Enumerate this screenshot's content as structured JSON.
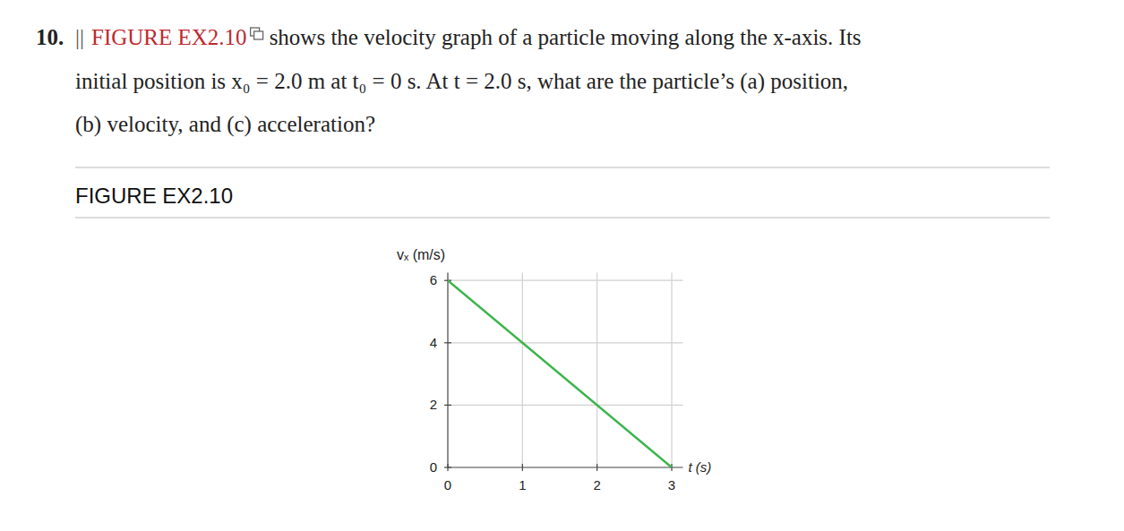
{
  "problem": {
    "number": "10.",
    "difficulty": "||",
    "figure_ref": "FIGURE EX2.10",
    "line1": "shows the velocity graph of a particle moving along the x-axis. Its",
    "line2": "initial position is x₀ = 2.0 m at t₀ = 0 s. At t = 2.0 s, what are the particle’s (a) position,",
    "line3": "(b) velocity, and (c) acceleration?"
  },
  "figure": {
    "caption": "FIGURE EX2.10"
  },
  "chart_data": {
    "type": "line",
    "x_label": "t (s)",
    "y_label": "vₓ (m/s)",
    "x": [
      0,
      3
    ],
    "series": [
      {
        "name": "vₓ",
        "color": "#3cb44b",
        "values": [
          6,
          0
        ]
      }
    ],
    "xlim": [
      0,
      3.15
    ],
    "ylim": [
      0,
      6.25
    ],
    "xticks": [
      0,
      1,
      2,
      3
    ],
    "yticks": [
      0,
      2,
      4,
      6
    ],
    "grid": true
  }
}
